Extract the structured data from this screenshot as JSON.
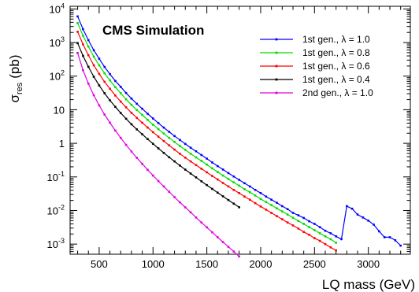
{
  "chart_data": {
    "type": "line",
    "annotation": "CMS Simulation",
    "xlabel": "LQ mass (GeV)",
    "ylabel": {
      "main": "σ",
      "sub": "res",
      "unit": "(pb)"
    },
    "x_scale": "linear",
    "y_scale": "log",
    "xlim": [
      230,
      3390
    ],
    "ylim": [
      0.0005,
      12000
    ],
    "x_ticks": [
      500,
      1000,
      1500,
      2000,
      2500,
      3000
    ],
    "x_tick_labels": [
      "500",
      "1000",
      "1500",
      "2000",
      "2500",
      "3000"
    ],
    "y_ticks": [
      0.001,
      0.01,
      0.1,
      1,
      10,
      100,
      1000,
      10000
    ],
    "y_tick_labels": [
      {
        "base": "10",
        "exp": "-3"
      },
      {
        "base": "10",
        "exp": "-2"
      },
      {
        "base": "10",
        "exp": "-1"
      },
      {
        "base": "1",
        "exp": ""
      },
      {
        "base": "10",
        "exp": ""
      },
      {
        "base": "10",
        "exp": "2"
      },
      {
        "base": "10",
        "exp": "3"
      },
      {
        "base": "10",
        "exp": "4"
      }
    ],
    "grid": false,
    "legend_position": "top-right",
    "series": [
      {
        "name": "1st gen., λ = 1.0",
        "color": "#0000ff",
        "x": [
          300,
          350,
          400,
          450,
          500,
          550,
          600,
          650,
          700,
          750,
          800,
          850,
          900,
          950,
          1000,
          1050,
          1100,
          1150,
          1200,
          1250,
          1300,
          1350,
          1400,
          1450,
          1500,
          1550,
          1600,
          1650,
          1700,
          1750,
          1800,
          1850,
          1900,
          1950,
          2000,
          2050,
          2100,
          2150,
          2200,
          2250,
          2300,
          2350,
          2400,
          2450,
          2500,
          2550,
          2600,
          2650,
          2700,
          2750,
          2800,
          2850,
          2900,
          2950,
          3000,
          3050,
          3100,
          3150,
          3200,
          3250,
          3300
        ],
        "y": [
          6000,
          2500,
          1180,
          590,
          330,
          188,
          115,
          72,
          48,
          31.5,
          21.5,
          15,
          10.7,
          7.6,
          5.5,
          4.0,
          2.95,
          2.2,
          1.65,
          1.26,
          0.96,
          0.74,
          0.58,
          0.45,
          0.35,
          0.27,
          0.21,
          0.166,
          0.13,
          0.103,
          0.082,
          0.065,
          0.052,
          0.041,
          0.033,
          0.026,
          0.021,
          0.017,
          0.0135,
          0.011,
          0.0085,
          0.0072,
          0.006,
          0.0048,
          0.004,
          0.0032,
          0.0025,
          0.0021,
          0.0017,
          0.0014,
          0.0135,
          0.0113,
          0.0076,
          0.0062,
          0.005,
          0.0038,
          0.0024,
          0.0016,
          0.0016,
          0.0013,
          0.0009
        ]
      },
      {
        "name": "1st gen., λ = 0.8",
        "color": "#00dd00",
        "x": [
          300,
          350,
          400,
          450,
          500,
          550,
          600,
          650,
          700,
          750,
          800,
          850,
          900,
          950,
          1000,
          1050,
          1100,
          1150,
          1200,
          1250,
          1300,
          1350,
          1400,
          1450,
          1500,
          1550,
          1600,
          1650,
          1700,
          1750,
          1800,
          1850,
          1900,
          1950,
          2000,
          2050,
          2100,
          2150,
          2200,
          2250,
          2300,
          2350,
          2400,
          2450,
          2500,
          2550,
          2600,
          2650,
          2700
        ],
        "y": [
          3800,
          1600,
          760,
          380,
          210,
          122,
          75,
          47,
          31,
          20.5,
          14,
          9.8,
          7,
          5,
          3.6,
          2.65,
          1.95,
          1.45,
          1.1,
          0.83,
          0.64,
          0.49,
          0.38,
          0.3,
          0.232,
          0.18,
          0.14,
          0.11,
          0.087,
          0.069,
          0.055,
          0.043,
          0.035,
          0.028,
          0.022,
          0.018,
          0.0145,
          0.0116,
          0.0094,
          0.0076,
          0.0061,
          0.0049,
          0.004,
          0.0032,
          0.0026,
          0.0021,
          0.0017,
          0.0014,
          0.0011
        ]
      },
      {
        "name": "1st gen., λ = 0.6",
        "color": "#ff0000",
        "x": [
          300,
          350,
          400,
          450,
          500,
          550,
          600,
          650,
          700,
          750,
          800,
          850,
          900,
          950,
          1000,
          1050,
          1100,
          1150,
          1200,
          1250,
          1300,
          1350,
          1400,
          1450,
          1500,
          1550,
          1600,
          1650,
          1700,
          1750,
          1800,
          1850,
          1900,
          1950,
          2000,
          2050,
          2100,
          2150,
          2200,
          2250,
          2300,
          2350,
          2400,
          2450,
          2500,
          2550,
          2600,
          2650,
          2700
        ],
        "y": [
          2100,
          880,
          420,
          210,
          117,
          68,
          42,
          26.5,
          17.5,
          11.8,
          8.1,
          5.7,
          4.1,
          2.95,
          2.15,
          1.58,
          1.17,
          0.87,
          0.65,
          0.49,
          0.375,
          0.29,
          0.225,
          0.175,
          0.137,
          0.107,
          0.084,
          0.066,
          0.052,
          0.041,
          0.033,
          0.026,
          0.021,
          0.0165,
          0.0132,
          0.0106,
          0.0085,
          0.0068,
          0.0055,
          0.0044,
          0.0036,
          0.0029,
          0.0023,
          0.0019,
          0.0015,
          0.00125,
          0.001,
          0.0008,
          0.00065
        ]
      },
      {
        "name": "1st gen., λ = 0.4",
        "color": "#000000",
        "x": [
          300,
          350,
          400,
          450,
          500,
          550,
          600,
          650,
          700,
          750,
          800,
          850,
          900,
          950,
          1000,
          1050,
          1100,
          1150,
          1200,
          1250,
          1300,
          1350,
          1400,
          1450,
          1500,
          1550,
          1600,
          1650,
          1700,
          1750,
          1800
        ],
        "y": [
          960,
          400,
          190,
          96,
          53,
          31,
          19,
          12.2,
          8,
          5.4,
          3.7,
          2.6,
          1.86,
          1.34,
          0.97,
          0.71,
          0.52,
          0.385,
          0.29,
          0.218,
          0.165,
          0.126,
          0.097,
          0.074,
          0.057,
          0.044,
          0.034,
          0.0265,
          0.0205,
          0.016,
          0.0125
        ]
      },
      {
        "name": "2nd gen., λ = 1.0",
        "color": "#e000e0",
        "x": [
          300,
          350,
          400,
          450,
          500,
          550,
          600,
          650,
          700,
          750,
          800,
          850,
          900,
          950,
          1000,
          1050,
          1100,
          1150,
          1200,
          1250,
          1300,
          1350,
          1400,
          1450,
          1500,
          1550,
          1600,
          1650,
          1700,
          1750,
          1800
        ],
        "y": [
          490,
          150,
          60,
          27,
          13.5,
          7.2,
          4.1,
          2.4,
          1.45,
          0.9,
          0.57,
          0.37,
          0.245,
          0.163,
          0.11,
          0.075,
          0.052,
          0.036,
          0.025,
          0.0175,
          0.0124,
          0.0088,
          0.0062,
          0.0044,
          0.00315,
          0.00225,
          0.0016,
          0.00115,
          0.00083,
          0.0006,
          0.00043
        ]
      }
    ]
  }
}
